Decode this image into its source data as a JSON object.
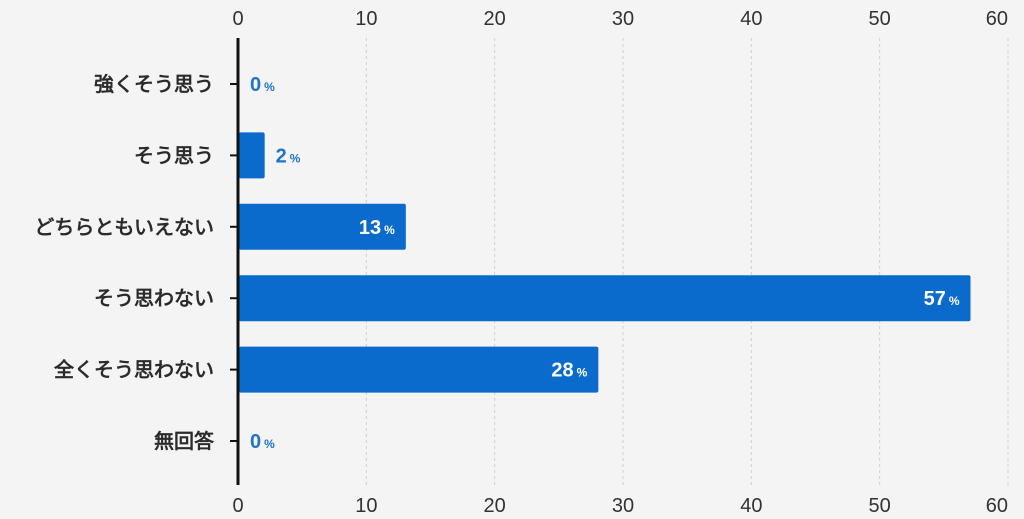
{
  "chart_data": {
    "type": "bar",
    "orientation": "horizontal",
    "categories": [
      "強くそう思う",
      "そう思う",
      "どちらともいえない",
      "そう思わない",
      "全くそう思わない",
      "無回答"
    ],
    "values": [
      0,
      2,
      13,
      57,
      28,
      0
    ],
    "value_unit": "%",
    "xlim": [
      0,
      60
    ],
    "xticks": [
      0,
      10,
      20,
      30,
      40,
      50,
      60
    ],
    "grid": "vertical-dashed",
    "axis_ticks": "top-and-bottom",
    "bar_color": "#0a6bcc",
    "label_color_outside": "#1f74c8",
    "label_color_inside": "#ffffff"
  }
}
